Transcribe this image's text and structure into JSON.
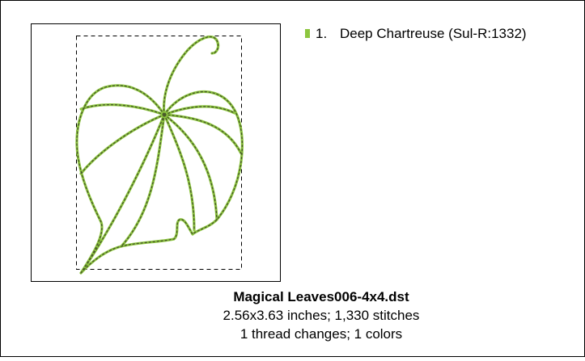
{
  "design": {
    "title": "Magical Leaves006-4x4.dst",
    "details": [
      "2.56x3.63 inches; 1,330 stitches",
      "1 thread changes; 1 colors"
    ]
  },
  "threads": [
    {
      "number": "1.",
      "name": "Deep Chartreuse (Sul-R:1332)",
      "color": "#8dc63f"
    }
  ]
}
